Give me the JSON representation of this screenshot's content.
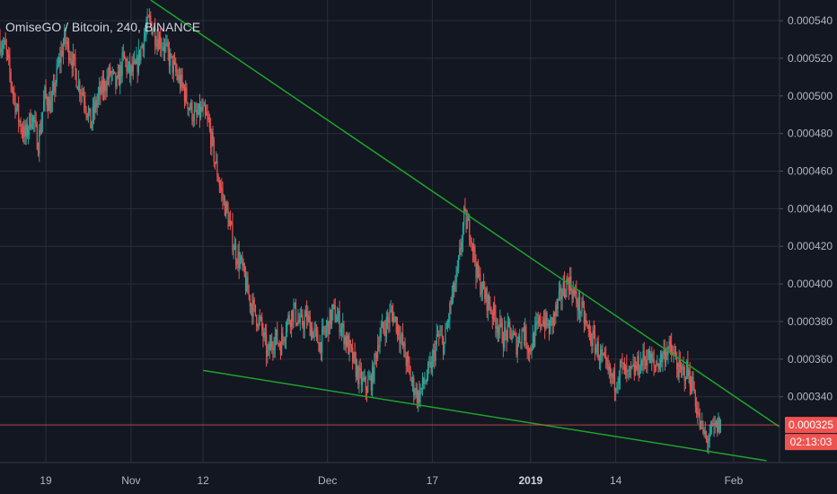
{
  "title": "OmiseGO / Bitcoin, 240, BINANCE",
  "colors": {
    "background": "#131722",
    "grid": "#2a2e39",
    "up": "#26a69a",
    "down": "#ef5350",
    "trendline": "#1fa32b",
    "price_line": "#ef5350",
    "axis_text": "#b2b5be"
  },
  "chart_data": {
    "type": "candlestick",
    "symbol": "OmiseGO / Bitcoin",
    "interval": "240",
    "exchange": "BINANCE",
    "y_axis": {
      "position": "right",
      "range": [
        0.000305,
        0.000551
      ],
      "ticks": [
        "0.000340",
        "0.000360",
        "0.000380",
        "0.000400",
        "0.000420",
        "0.000440",
        "0.000460",
        "0.000480",
        "0.000500",
        "0.000520",
        "0.000540"
      ]
    },
    "x_axis": {
      "range": [
        "2018-10-12",
        "2019-02-08"
      ],
      "ticks": [
        {
          "label": "19",
          "date": "2018-10-19",
          "bold": false
        },
        {
          "label": "Nov",
          "date": "2018-11-01",
          "bold": false
        },
        {
          "label": "12",
          "date": "2018-11-12",
          "bold": false
        },
        {
          "label": "Dec",
          "date": "2018-12-01",
          "bold": false
        },
        {
          "label": "17",
          "date": "2018-12-17",
          "bold": false
        },
        {
          "label": "2019",
          "date": "2019-01-01",
          "bold": true
        },
        {
          "label": "14",
          "date": "2019-01-14",
          "bold": false
        },
        {
          "label": "Feb",
          "date": "2019-02-01",
          "bold": false
        }
      ]
    },
    "price_path": [
      [
        "2018-10-12",
        0.00053
      ],
      [
        "2018-10-13",
        0.000525
      ],
      [
        "2018-10-14",
        0.000505
      ],
      [
        "2018-10-15",
        0.000488
      ],
      [
        "2018-10-16",
        0.000478
      ],
      [
        "2018-10-17",
        0.00049
      ],
      [
        "2018-10-18",
        0.000475
      ],
      [
        "2018-10-19",
        0.0005
      ],
      [
        "2018-10-20",
        0.000495
      ],
      [
        "2018-10-21",
        0.000515
      ],
      [
        "2018-10-22",
        0.00053
      ],
      [
        "2018-10-23",
        0.000522
      ],
      [
        "2018-10-24",
        0.000508
      ],
      [
        "2018-10-25",
        0.0005
      ],
      [
        "2018-10-26",
        0.000485
      ],
      [
        "2018-10-27",
        0.000498
      ],
      [
        "2018-10-28",
        0.000505
      ],
      [
        "2018-10-29",
        0.000512
      ],
      [
        "2018-10-30",
        0.000505
      ],
      [
        "2018-10-31",
        0.00052
      ],
      [
        "2018-11-01",
        0.000512
      ],
      [
        "2018-11-02",
        0.000515
      ],
      [
        "2018-11-03",
        0.00053
      ],
      [
        "2018-11-04",
        0.00054
      ],
      [
        "2018-11-05",
        0.000532
      ],
      [
        "2018-11-06",
        0.000528
      ],
      [
        "2018-11-07",
        0.00052
      ],
      [
        "2018-11-08",
        0.000512
      ],
      [
        "2018-11-09",
        0.000505
      ],
      [
        "2018-11-10",
        0.000495
      ],
      [
        "2018-11-11",
        0.000488
      ],
      [
        "2018-11-12",
        0.000492
      ],
      [
        "2018-11-13",
        0.000485
      ],
      [
        "2018-11-14",
        0.000465
      ],
      [
        "2018-11-15",
        0.000448
      ],
      [
        "2018-11-16",
        0.000435
      ],
      [
        "2018-11-17",
        0.000418
      ],
      [
        "2018-11-18",
        0.00041
      ],
      [
        "2018-11-19",
        0.000395
      ],
      [
        "2018-11-20",
        0.000385
      ],
      [
        "2018-11-21",
        0.000378
      ],
      [
        "2018-11-22",
        0.000362
      ],
      [
        "2018-11-23",
        0.000372
      ],
      [
        "2018-11-24",
        0.000368
      ],
      [
        "2018-11-25",
        0.00038
      ],
      [
        "2018-11-26",
        0.000386
      ],
      [
        "2018-11-27",
        0.000378
      ],
      [
        "2018-11-28",
        0.000382
      ],
      [
        "2018-11-29",
        0.000374
      ],
      [
        "2018-11-30",
        0.000368
      ],
      [
        "2018-12-01",
        0.000376
      ],
      [
        "2018-12-02",
        0.000385
      ],
      [
        "2018-12-03",
        0.00038
      ],
      [
        "2018-12-04",
        0.00037
      ],
      [
        "2018-12-05",
        0.00036
      ],
      [
        "2018-12-06",
        0.00035
      ],
      [
        "2018-12-07",
        0.000345
      ],
      [
        "2018-12-08",
        0.00035
      ],
      [
        "2018-12-09",
        0.000372
      ],
      [
        "2018-12-10",
        0.000378
      ],
      [
        "2018-12-11",
        0.000385
      ],
      [
        "2018-12-12",
        0.000376
      ],
      [
        "2018-12-13",
        0.000362
      ],
      [
        "2018-12-14",
        0.000348
      ],
      [
        "2018-12-15",
        0.00034
      ],
      [
        "2018-12-16",
        0.000348
      ],
      [
        "2018-12-17",
        0.000356
      ],
      [
        "2018-12-18",
        0.000372
      ],
      [
        "2018-12-19",
        0.000368
      ],
      [
        "2018-12-20",
        0.00039
      ],
      [
        "2018-12-21",
        0.000405
      ],
      [
        "2018-12-22",
        0.000435
      ],
      [
        "2018-12-23",
        0.000428
      ],
      [
        "2018-12-24",
        0.000405
      ],
      [
        "2018-12-25",
        0.000395
      ],
      [
        "2018-12-26",
        0.000388
      ],
      [
        "2018-12-27",
        0.00038
      ],
      [
        "2018-12-28",
        0.000372
      ],
      [
        "2018-12-29",
        0.000375
      ],
      [
        "2018-12-30",
        0.000368
      ],
      [
        "2018-12-31",
        0.000376
      ],
      [
        "2019-01-01",
        0.000365
      ],
      [
        "2019-01-02",
        0.000375
      ],
      [
        "2019-01-03",
        0.000382
      ],
      [
        "2019-01-04",
        0.000376
      ],
      [
        "2019-01-05",
        0.000385
      ],
      [
        "2019-01-06",
        0.000396
      ],
      [
        "2019-01-07",
        0.000402
      ],
      [
        "2019-01-08",
        0.000392
      ],
      [
        "2019-01-09",
        0.000385
      ],
      [
        "2019-01-10",
        0.000374
      ],
      [
        "2019-01-11",
        0.000368
      ],
      [
        "2019-01-12",
        0.00036
      ],
      [
        "2019-01-13",
        0.000352
      ],
      [
        "2019-01-14",
        0.000348
      ],
      [
        "2019-01-15",
        0.000356
      ],
      [
        "2019-01-16",
        0.00035
      ],
      [
        "2019-01-17",
        0.000354
      ],
      [
        "2019-01-18",
        0.000358
      ],
      [
        "2019-01-19",
        0.000362
      ],
      [
        "2019-01-20",
        0.000356
      ],
      [
        "2019-01-21",
        0.00036
      ],
      [
        "2019-01-22",
        0.000366
      ],
      [
        "2019-01-23",
        0.000362
      ],
      [
        "2019-01-24",
        0.000352
      ],
      [
        "2019-01-25",
        0.000354
      ],
      [
        "2019-01-26",
        0.000345
      ],
      [
        "2019-01-27",
        0.000325
      ],
      [
        "2019-01-28",
        0.000317
      ],
      [
        "2019-01-29",
        0.000322
      ],
      [
        "2019-01-30",
        0.000325
      ]
    ],
    "trendlines": [
      {
        "name": "upper",
        "x1": "2018-11-04",
        "y1": 0.000551,
        "x2": "2019-02-08",
        "y2": 0.000324
      },
      {
        "name": "lower",
        "x1": "2018-11-12",
        "y1": 0.000354,
        "x2": "2019-02-06",
        "y2": 0.000306
      }
    ],
    "last_price": "0.000325",
    "countdown": "02:13:03"
  }
}
